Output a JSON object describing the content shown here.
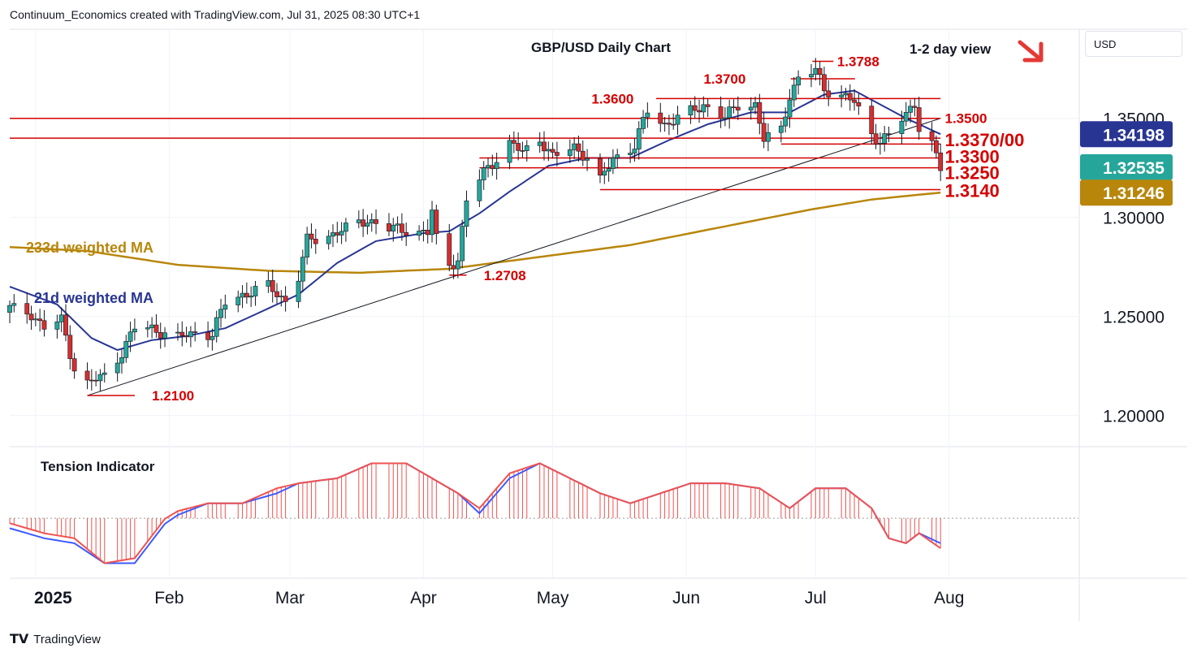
{
  "header": {
    "credit": "Continuum_Economics created with TradingView.com, Jul 31, 2025 08:30 UTC+1"
  },
  "currency_button": "USD",
  "footer": {
    "brand": "TradingView"
  },
  "colors": {
    "up": "#26a69a",
    "down": "#d32f2f",
    "level": "#d50000",
    "ma21": "#283593",
    "ma233": "#b8860b",
    "tension_fast": "#ef5350",
    "tension_slow": "#3d5afe",
    "trendline": "#131722"
  },
  "chart_data": {
    "type": "candlestick",
    "title": "GBP/USD Daily Chart",
    "view_label": "1-2 day view",
    "view_direction": "down",
    "view_icon": "arrow-down-right-icon",
    "ylim": [
      1.185,
      1.395
    ],
    "y_ticks": [
      "1.35000",
      "1.30000",
      "1.25000",
      "1.20000"
    ],
    "x_ticks": [
      "2025",
      "Feb",
      "Mar",
      "Apr",
      "May",
      "Jun",
      "Jul",
      "Aug"
    ],
    "x_tick_dates": [
      "2025-01-01",
      "2025-02-01",
      "2025-03-01",
      "2025-04-01",
      "2025-05-01",
      "2025-06-01",
      "2025-07-01",
      "2025-08-01"
    ],
    "date_range": [
      "2024-12-26",
      "2025-08-31"
    ],
    "price_badges": [
      {
        "label": "1.34198",
        "value": 1.34198,
        "color": "#283593"
      },
      {
        "label": "1.32535",
        "value": 1.32535,
        "color": "#26a69a"
      },
      {
        "label": "1.31246",
        "value": 1.31246,
        "color": "#b8860b"
      }
    ],
    "levels": [
      {
        "label": "1.3788",
        "value": 1.3788,
        "from": "2025-07-01",
        "to": "2025-07-01",
        "label_at": "2025-07-06",
        "span": "none"
      },
      {
        "label": "1.3700",
        "value": 1.37,
        "from": "2025-06-26",
        "to": "2025-07-06",
        "label_at": "2025-06-05",
        "span": "none"
      },
      {
        "label": "1.3600",
        "value": 1.36,
        "from": "2025-05-25",
        "to": "2025-07-30",
        "label_at": "2025-05-10",
        "span": "segment"
      },
      {
        "label": "1.3500",
        "value": 1.35,
        "from": "2024-12-26",
        "to": "2025-07-30",
        "label_at": "2025-07-31",
        "span": "full"
      },
      {
        "label": "1.3370/00",
        "value": 1.34,
        "from": "2024-12-26",
        "to": "2025-07-30",
        "label_at": "2025-07-31",
        "span": "full"
      },
      {
        "label": "1.3370/00",
        "value": 1.337,
        "from": "2025-06-23",
        "to": "2025-07-30",
        "label_at": "",
        "span": "segment"
      },
      {
        "label": "1.3300",
        "value": 1.33,
        "from": "2025-04-14",
        "to": "2025-07-30",
        "label_at": "2025-07-31",
        "span": "segment"
      },
      {
        "label": "1.3250",
        "value": 1.325,
        "from": "2025-04-14",
        "to": "2025-07-30",
        "label_at": "2025-07-31",
        "span": "segment"
      },
      {
        "label": "1.3140",
        "value": 1.314,
        "from": "2025-05-12",
        "to": "2025-07-30",
        "label_at": "2025-07-31",
        "span": "segment"
      },
      {
        "label": "1.2708",
        "value": 1.2708,
        "from": "2025-04-07",
        "to": "2025-04-11",
        "label_at": "2025-04-15",
        "span": "segment"
      },
      {
        "label": "1.2100",
        "value": 1.21,
        "from": "2025-01-13",
        "to": "2025-01-24",
        "label_at": "2025-01-28",
        "span": "segment"
      }
    ],
    "trendline": {
      "from": [
        "2025-01-13",
        1.21
      ],
      "to": [
        "2025-07-30",
        1.35
      ]
    },
    "ma_labels": [
      {
        "text": "233d weighted MA",
        "color": "#b8860b"
      },
      {
        "text": "21d weighted MA",
        "color": "#283593"
      }
    ],
    "candle_anchors": [
      [
        "2024-12-26",
        1.254
      ],
      [
        "2024-12-31",
        1.2515
      ],
      [
        "2025-01-03",
        1.244
      ],
      [
        "2025-01-07",
        1.248
      ],
      [
        "2025-01-10",
        1.224
      ],
      [
        "2025-01-13",
        1.216
      ],
      [
        "2025-01-17",
        1.22
      ],
      [
        "2025-01-21",
        1.232
      ],
      [
        "2025-01-24",
        1.244
      ],
      [
        "2025-01-28",
        1.244
      ],
      [
        "2025-02-03",
        1.239
      ],
      [
        "2025-02-07",
        1.242
      ],
      [
        "2025-02-11",
        1.241
      ],
      [
        "2025-02-14",
        1.257
      ],
      [
        "2025-02-18",
        1.261
      ],
      [
        "2025-02-24",
        1.265
      ],
      [
        "2025-02-28",
        1.258
      ],
      [
        "2025-03-03",
        1.27
      ],
      [
        "2025-03-05",
        1.288
      ],
      [
        "2025-03-10",
        1.291
      ],
      [
        "2025-03-14",
        1.294
      ],
      [
        "2025-03-19",
        1.299
      ],
      [
        "2025-03-24",
        1.294
      ],
      [
        "2025-03-28",
        1.294
      ],
      [
        "2025-04-02",
        1.292
      ],
      [
        "2025-04-03",
        1.303
      ],
      [
        "2025-04-04",
        1.289
      ],
      [
        "2025-04-07",
        1.276
      ],
      [
        "2025-04-09",
        1.279
      ],
      [
        "2025-04-11",
        1.308
      ],
      [
        "2025-04-15",
        1.323
      ],
      [
        "2025-04-21",
        1.337
      ],
      [
        "2025-04-24",
        1.333
      ],
      [
        "2025-04-28",
        1.34
      ],
      [
        "2025-05-01",
        1.33
      ],
      [
        "2025-05-06",
        1.336
      ],
      [
        "2025-05-09",
        1.33
      ],
      [
        "2025-05-12",
        1.318
      ],
      [
        "2025-05-15",
        1.33
      ],
      [
        "2025-05-20",
        1.336
      ],
      [
        "2025-05-23",
        1.354
      ],
      [
        "2025-05-27",
        1.347
      ],
      [
        "2025-06-02",
        1.353
      ],
      [
        "2025-06-05",
        1.357
      ],
      [
        "2025-06-10",
        1.35
      ],
      [
        "2025-06-13",
        1.357
      ],
      [
        "2025-06-17",
        1.357
      ],
      [
        "2025-06-19",
        1.339
      ],
      [
        "2025-06-23",
        1.344
      ],
      [
        "2025-06-25",
        1.362
      ],
      [
        "2025-06-27",
        1.37
      ],
      [
        "2025-07-01",
        1.374
      ],
      [
        "2025-07-03",
        1.365
      ],
      [
        "2025-07-07",
        1.362
      ],
      [
        "2025-07-10",
        1.358
      ],
      [
        "2025-07-14",
        1.342
      ],
      [
        "2025-07-16",
        1.339
      ],
      [
        "2025-07-18",
        1.341
      ],
      [
        "2025-07-22",
        1.352
      ],
      [
        "2025-07-24",
        1.358
      ],
      [
        "2025-07-25",
        1.346
      ],
      [
        "2025-07-28",
        1.337
      ],
      [
        "2025-07-29",
        1.33
      ],
      [
        "2025-07-30",
        1.324
      ]
    ],
    "ma21_anchors": [
      [
        "2024-12-26",
        1.265
      ],
      [
        "2025-01-06",
        1.256
      ],
      [
        "2025-01-14",
        1.239
      ],
      [
        "2025-01-20",
        1.233
      ],
      [
        "2025-01-28",
        1.238
      ],
      [
        "2025-02-05",
        1.24
      ],
      [
        "2025-02-14",
        1.244
      ],
      [
        "2025-02-24",
        1.254
      ],
      [
        "2025-03-03",
        1.261
      ],
      [
        "2025-03-12",
        1.277
      ],
      [
        "2025-03-21",
        1.288
      ],
      [
        "2025-04-01",
        1.292
      ],
      [
        "2025-04-07",
        1.293
      ],
      [
        "2025-04-14",
        1.302
      ],
      [
        "2025-04-21",
        1.313
      ],
      [
        "2025-04-30",
        1.326
      ],
      [
        "2025-05-09",
        1.33
      ],
      [
        "2025-05-19",
        1.33
      ],
      [
        "2025-05-28",
        1.339
      ],
      [
        "2025-06-06",
        1.347
      ],
      [
        "2025-06-16",
        1.353
      ],
      [
        "2025-06-25",
        1.353
      ],
      [
        "2025-07-03",
        1.362
      ],
      [
        "2025-07-10",
        1.364
      ],
      [
        "2025-07-16",
        1.357
      ],
      [
        "2025-07-22",
        1.35
      ],
      [
        "2025-07-30",
        1.342
      ]
    ],
    "ma233_anchors": [
      [
        "2024-12-26",
        1.285
      ],
      [
        "2025-01-13",
        1.283
      ],
      [
        "2025-02-03",
        1.276
      ],
      [
        "2025-02-24",
        1.273
      ],
      [
        "2025-03-17",
        1.272
      ],
      [
        "2025-04-07",
        1.274
      ],
      [
        "2025-04-28",
        1.28
      ],
      [
        "2025-05-19",
        1.286
      ],
      [
        "2025-06-09",
        1.295
      ],
      [
        "2025-06-30",
        1.304
      ],
      [
        "2025-07-14",
        1.309
      ],
      [
        "2025-07-30",
        1.3125
      ]
    ],
    "tension_indicator": {
      "title": "Tension Indicator",
      "ylim": [
        -60,
        70
      ],
      "zero": 0,
      "fast_anchors": [
        [
          "2024-12-26",
          -5
        ],
        [
          "2025-01-03",
          -15
        ],
        [
          "2025-01-10",
          -20
        ],
        [
          "2025-01-17",
          -45
        ],
        [
          "2025-01-24",
          -40
        ],
        [
          "2025-02-01",
          5
        ],
        [
          "2025-02-10",
          15
        ],
        [
          "2025-02-18",
          15
        ],
        [
          "2025-02-26",
          30
        ],
        [
          "2025-03-03",
          35
        ],
        [
          "2025-03-12",
          40
        ],
        [
          "2025-03-20",
          55
        ],
        [
          "2025-03-28",
          55
        ],
        [
          "2025-04-03",
          40
        ],
        [
          "2025-04-09",
          25
        ],
        [
          "2025-04-14",
          10
        ],
        [
          "2025-04-21",
          45
        ],
        [
          "2025-04-28",
          55
        ],
        [
          "2025-05-05",
          40
        ],
        [
          "2025-05-12",
          25
        ],
        [
          "2025-05-19",
          15
        ],
        [
          "2025-05-26",
          25
        ],
        [
          "2025-06-02",
          35
        ],
        [
          "2025-06-10",
          35
        ],
        [
          "2025-06-18",
          30
        ],
        [
          "2025-06-25",
          10
        ],
        [
          "2025-07-01",
          30
        ],
        [
          "2025-07-08",
          30
        ],
        [
          "2025-07-14",
          10
        ],
        [
          "2025-07-18",
          -20
        ],
        [
          "2025-07-22",
          -25
        ],
        [
          "2025-07-25",
          -15
        ],
        [
          "2025-07-30",
          -30
        ]
      ],
      "slow_anchors": [
        [
          "2024-12-26",
          -10
        ],
        [
          "2025-01-03",
          -20
        ],
        [
          "2025-01-10",
          -25
        ],
        [
          "2025-01-17",
          -45
        ],
        [
          "2025-01-24",
          -45
        ],
        [
          "2025-02-01",
          0
        ],
        [
          "2025-02-10",
          15
        ],
        [
          "2025-02-18",
          15
        ],
        [
          "2025-02-26",
          25
        ],
        [
          "2025-03-03",
          35
        ],
        [
          "2025-03-12",
          40
        ],
        [
          "2025-03-20",
          55
        ],
        [
          "2025-03-28",
          55
        ],
        [
          "2025-04-03",
          40
        ],
        [
          "2025-04-09",
          25
        ],
        [
          "2025-04-14",
          5
        ],
        [
          "2025-04-21",
          40
        ],
        [
          "2025-04-28",
          55
        ],
        [
          "2025-05-05",
          40
        ],
        [
          "2025-05-12",
          25
        ],
        [
          "2025-05-19",
          15
        ],
        [
          "2025-05-26",
          25
        ],
        [
          "2025-06-02",
          35
        ],
        [
          "2025-06-10",
          35
        ],
        [
          "2025-06-18",
          30
        ],
        [
          "2025-06-25",
          10
        ],
        [
          "2025-07-01",
          30
        ],
        [
          "2025-07-08",
          30
        ],
        [
          "2025-07-14",
          10
        ],
        [
          "2025-07-18",
          -20
        ],
        [
          "2025-07-22",
          -25
        ],
        [
          "2025-07-25",
          -15
        ],
        [
          "2025-07-30",
          -25
        ]
      ]
    }
  }
}
